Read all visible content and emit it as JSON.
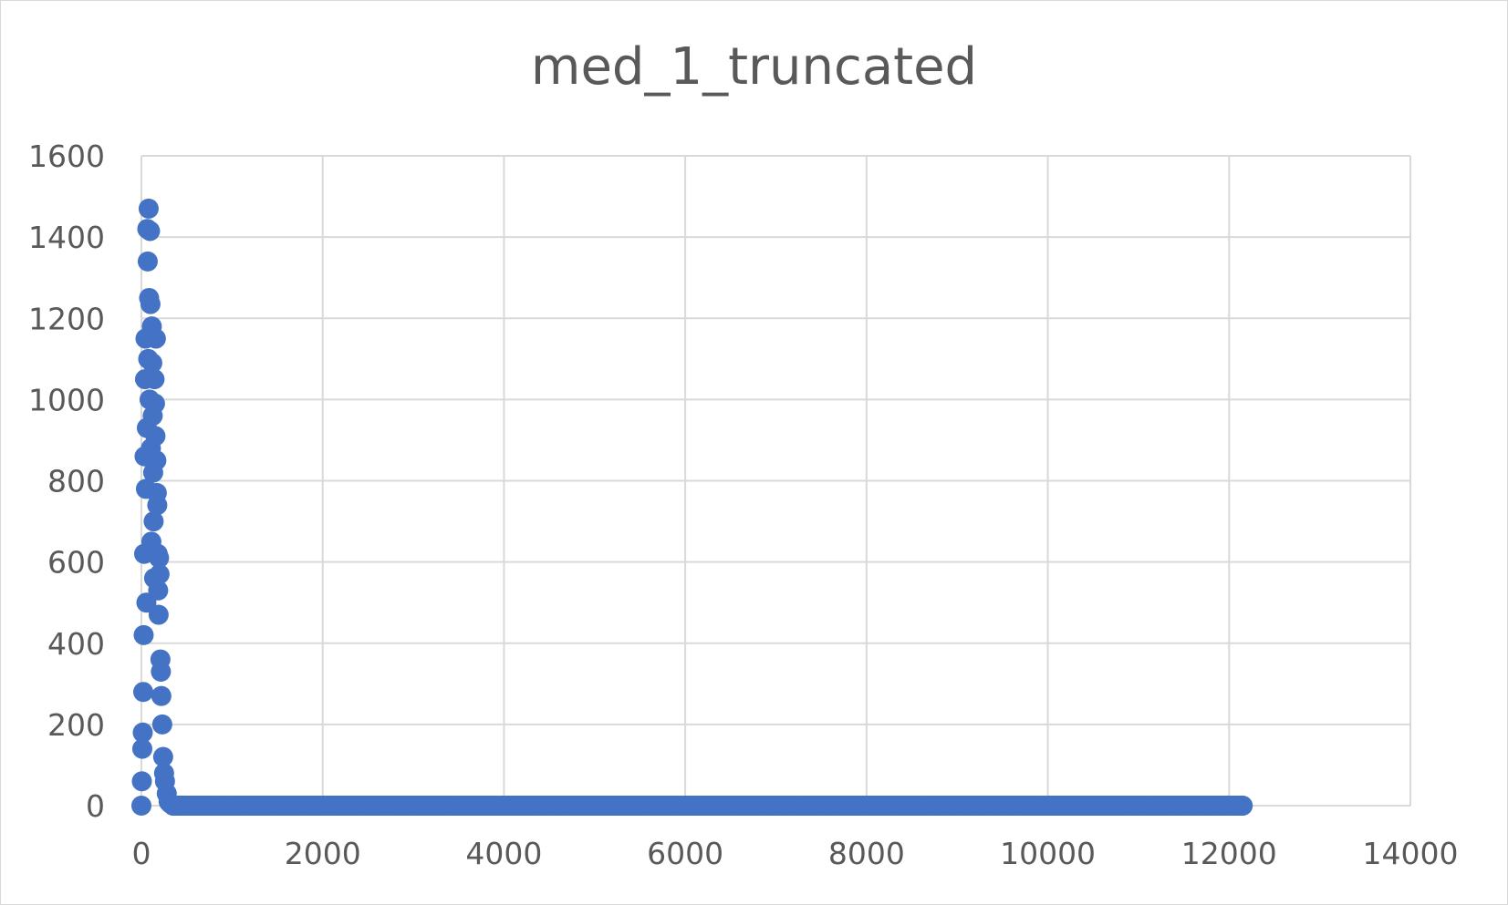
{
  "chart_data": {
    "type": "scatter",
    "title": "med_1_truncated",
    "xlabel": "",
    "ylabel": "",
    "xlim": [
      0,
      14000
    ],
    "ylim": [
      0,
      1600
    ],
    "xticks": [
      0,
      2000,
      4000,
      6000,
      8000,
      10000,
      12000,
      14000
    ],
    "yticks": [
      0,
      200,
      400,
      600,
      800,
      1000,
      1200,
      1400,
      1600
    ],
    "grid": true,
    "legend": "none",
    "marker_color": "#4472c4",
    "series": [
      {
        "points": [
          [
            0,
            0
          ],
          [
            5,
            60
          ],
          [
            10,
            140
          ],
          [
            15,
            180
          ],
          [
            20,
            280
          ],
          [
            25,
            420
          ],
          [
            30,
            620
          ],
          [
            35,
            860
          ],
          [
            40,
            1050
          ],
          [
            45,
            1150
          ],
          [
            50,
            780
          ],
          [
            55,
            500
          ],
          [
            60,
            930
          ],
          [
            65,
            1420
          ],
          [
            70,
            1340
          ],
          [
            75,
            1100
          ],
          [
            80,
            1470
          ],
          [
            85,
            1250
          ],
          [
            90,
            1000
          ],
          [
            95,
            1415
          ],
          [
            100,
            1235
          ],
          [
            105,
            880
          ],
          [
            110,
            650
          ],
          [
            115,
            1180
          ],
          [
            120,
            1090
          ],
          [
            125,
            960
          ],
          [
            130,
            820
          ],
          [
            135,
            700
          ],
          [
            140,
            560
          ],
          [
            145,
            1050
          ],
          [
            150,
            990
          ],
          [
            155,
            910
          ],
          [
            160,
            1150
          ],
          [
            165,
            850
          ],
          [
            170,
            770
          ],
          [
            175,
            740
          ],
          [
            180,
            620
          ],
          [
            185,
            530
          ],
          [
            190,
            470
          ],
          [
            195,
            610
          ],
          [
            200,
            570
          ],
          [
            210,
            360
          ],
          [
            215,
            330
          ],
          [
            220,
            270
          ],
          [
            230,
            200
          ],
          [
            240,
            120
          ],
          [
            250,
            80
          ],
          [
            260,
            60
          ],
          [
            280,
            30
          ],
          [
            300,
            10
          ],
          [
            320,
            5
          ],
          [
            350,
            0
          ]
        ],
        "baseline": {
          "x_start": 350,
          "x_end": 12150,
          "y": 0
        }
      }
    ]
  }
}
